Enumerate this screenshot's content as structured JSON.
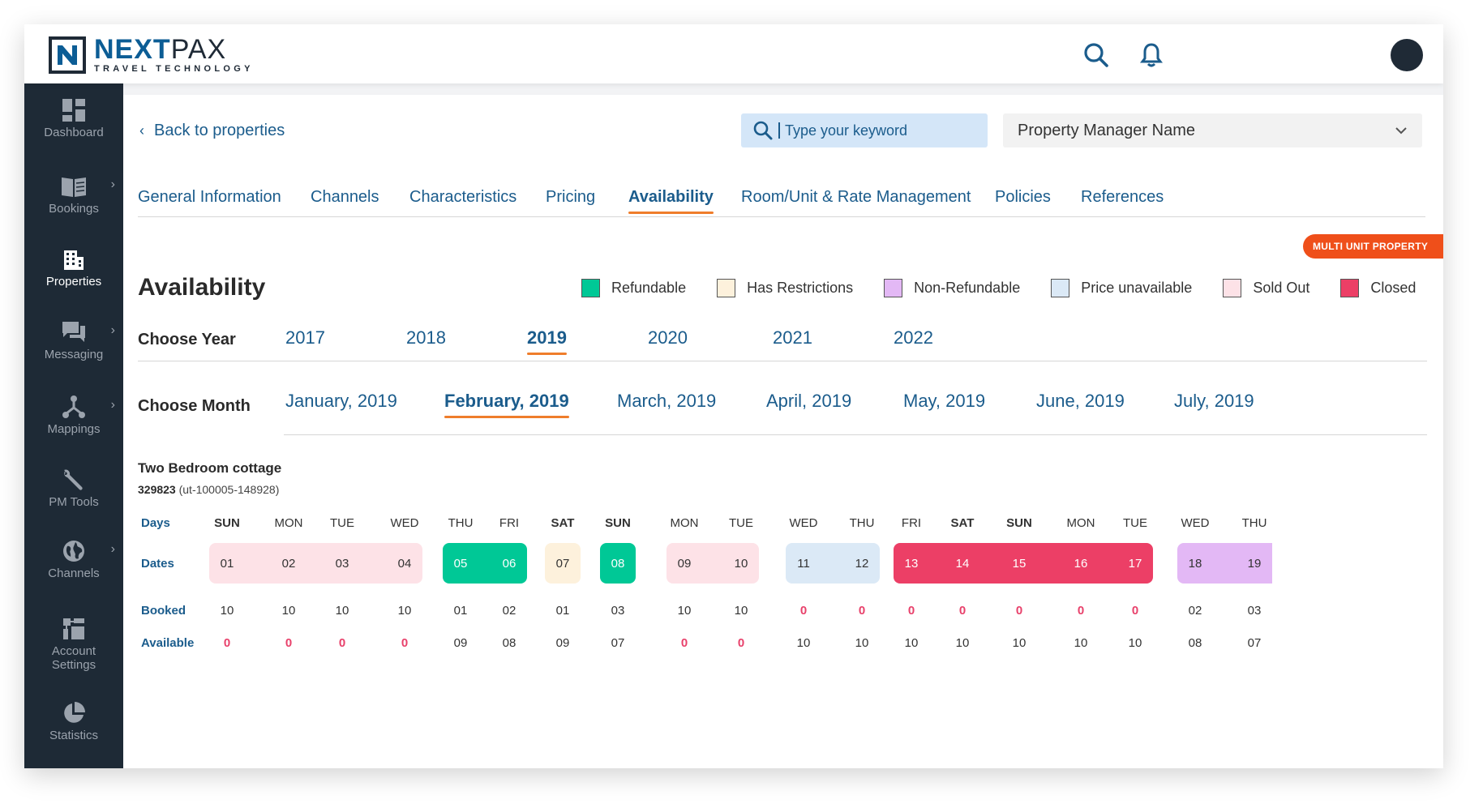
{
  "brand": {
    "name_a": "NEXT",
    "name_b": "PAX",
    "tagline": "TRAVEL TECHNOLOGY"
  },
  "colors": {
    "primary": "#1b5c8c",
    "accent": "#ef7d2b",
    "sidebar": "#1e2a36",
    "badge": "#ef4f1a"
  },
  "topbar": {
    "icons": [
      "search-icon",
      "bell-icon",
      "avatar"
    ]
  },
  "sidebar": {
    "items": [
      {
        "label": "Dashboard",
        "icon": "dashboard-icon",
        "active": false,
        "expandable": false
      },
      {
        "label": "Bookings",
        "icon": "book-icon",
        "active": false,
        "expandable": true
      },
      {
        "label": "Properties",
        "icon": "building-icon",
        "active": true,
        "expandable": false
      },
      {
        "label": "Messaging",
        "icon": "chat-icon",
        "active": false,
        "expandable": true
      },
      {
        "label": "Mappings",
        "icon": "network-icon",
        "active": false,
        "expandable": true
      },
      {
        "label": "PM Tools",
        "icon": "wrench-icon",
        "active": false,
        "expandable": false
      },
      {
        "label": "Channels",
        "icon": "globe-icon",
        "active": false,
        "expandable": true
      },
      {
        "label_1": "Account",
        "label_2": "Settings",
        "icon": "account-settings-icon",
        "active": false,
        "expandable": false
      },
      {
        "label": "Statistics",
        "icon": "pie-chart-icon",
        "active": false,
        "expandable": false
      }
    ]
  },
  "header": {
    "back_label": "Back to properties",
    "search_placeholder": "Type your keyword",
    "pm_select_value": "Property Manager Name"
  },
  "tabs": [
    {
      "label": "General Information",
      "active": false
    },
    {
      "label": "Channels",
      "active": false
    },
    {
      "label": "Characteristics",
      "active": false
    },
    {
      "label": "Pricing",
      "active": false
    },
    {
      "label": "Availability",
      "active": true
    },
    {
      "label": "Room/Unit & Rate Management",
      "active": false
    },
    {
      "label": "Policies",
      "active": false
    },
    {
      "label": "References",
      "active": false
    }
  ],
  "badge": "MULTI UNIT PROPERTY",
  "page_title": "Availability",
  "legend": [
    {
      "label": "Refundable",
      "color": "#00c896"
    },
    {
      "label": "Has Restrictions",
      "color": "#fdf1dc"
    },
    {
      "label": "Non-Refundable",
      "color": "#e3b8f5"
    },
    {
      "label": "Price unavailable",
      "color": "#dbe9f6"
    },
    {
      "label": "Sold Out",
      "color": "#fde2e7"
    },
    {
      "label": "Closed",
      "color": "#ec3f66"
    }
  ],
  "year_label": "Choose Year",
  "years": [
    {
      "label": "2017",
      "active": false
    },
    {
      "label": "2018",
      "active": false
    },
    {
      "label": "2019",
      "active": true
    },
    {
      "label": "2020",
      "active": false
    },
    {
      "label": "2021",
      "active": false
    },
    {
      "label": "2022",
      "active": false
    }
  ],
  "month_label": "Choose Month",
  "months": [
    {
      "label": "January, 2019",
      "active": false
    },
    {
      "label": "February, 2019",
      "active": true
    },
    {
      "label": "March, 2019",
      "active": false
    },
    {
      "label": "April, 2019",
      "active": false
    },
    {
      "label": "May, 2019",
      "active": false
    },
    {
      "label": "June, 2019",
      "active": false
    },
    {
      "label": "July, 2019",
      "active": false
    }
  ],
  "unit": {
    "name": "Two Bedroom cottage",
    "code": "329823",
    "ref": "(ut-100005-148928)"
  },
  "grid_labels": {
    "days": "Days",
    "dates": "Dates",
    "booked": "Booked",
    "available": "Available"
  },
  "calendar": [
    {
      "day": "SUN",
      "date": "01",
      "booked": "10",
      "available": "0",
      "status": "sold-out",
      "bold": true
    },
    {
      "day": "MON",
      "date": "02",
      "booked": "10",
      "available": "0",
      "status": "sold-out",
      "bold": false
    },
    {
      "day": "TUE",
      "date": "03",
      "booked": "10",
      "available": "0",
      "status": "sold-out",
      "bold": false
    },
    {
      "day": "WED",
      "date": "04",
      "booked": "10",
      "available": "0",
      "status": "sold-out",
      "bold": false
    },
    {
      "day": "THU",
      "date": "05",
      "booked": "01",
      "available": "09",
      "status": "refundable",
      "bold": false
    },
    {
      "day": "FRI",
      "date": "06",
      "booked": "02",
      "available": "08",
      "status": "refundable",
      "bold": false
    },
    {
      "day": "SAT",
      "date": "07",
      "booked": "01",
      "available": "09",
      "status": "restrictions",
      "bold": true
    },
    {
      "day": "SUN",
      "date": "08",
      "booked": "03",
      "available": "07",
      "status": "refundable",
      "bold": true
    },
    {
      "day": "MON",
      "date": "09",
      "booked": "10",
      "available": "0",
      "status": "sold-out",
      "bold": false
    },
    {
      "day": "TUE",
      "date": "10",
      "booked": "10",
      "available": "0",
      "status": "sold-out",
      "bold": false
    },
    {
      "day": "WED",
      "date": "11",
      "booked": "0",
      "available": "10",
      "status": "price-unavailable",
      "bold": false
    },
    {
      "day": "THU",
      "date": "12",
      "booked": "0",
      "available": "10",
      "status": "price-unavailable",
      "bold": false
    },
    {
      "day": "FRI",
      "date": "13",
      "booked": "0",
      "available": "10",
      "status": "closed",
      "bold": false
    },
    {
      "day": "SAT",
      "date": "14",
      "booked": "0",
      "available": "10",
      "status": "closed",
      "bold": true
    },
    {
      "day": "SUN",
      "date": "15",
      "booked": "0",
      "available": "10",
      "status": "closed",
      "bold": true
    },
    {
      "day": "MON",
      "date": "16",
      "booked": "0",
      "available": "10",
      "status": "closed",
      "bold": false
    },
    {
      "day": "TUE",
      "date": "17",
      "booked": "0",
      "available": "10",
      "status": "closed",
      "bold": false
    },
    {
      "day": "WED",
      "date": "18",
      "booked": "02",
      "available": "08",
      "status": "non-refundable",
      "bold": false
    },
    {
      "day": "THU",
      "date": "19",
      "booked": "03",
      "available": "07",
      "status": "non-refundable",
      "bold": false
    }
  ]
}
